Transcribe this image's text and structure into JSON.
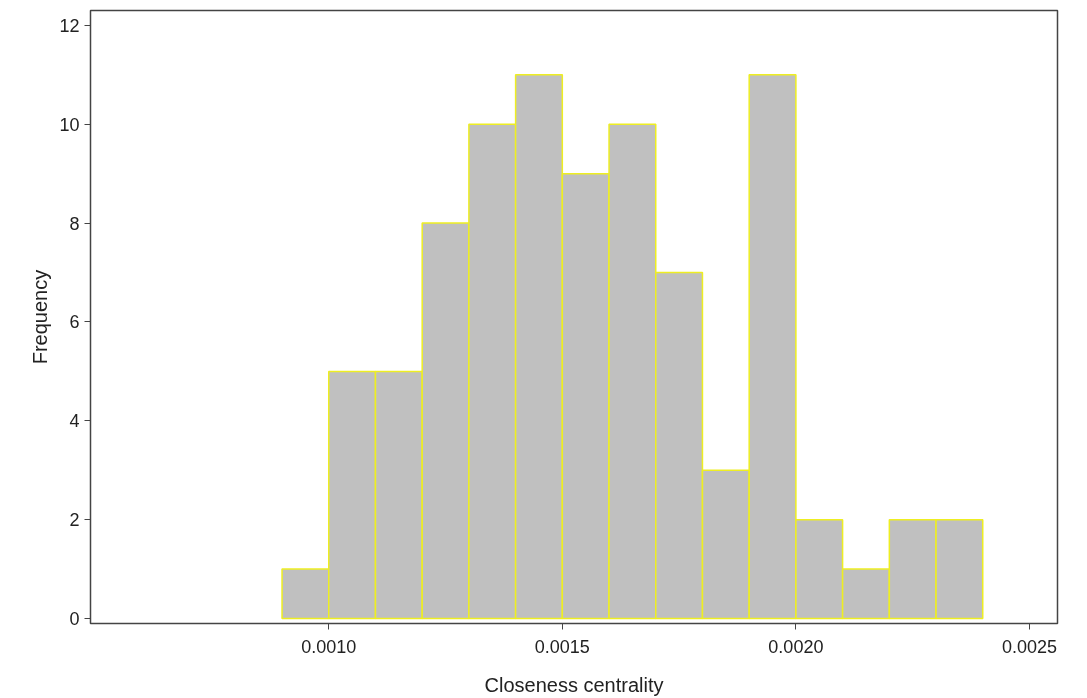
{
  "chart_data": {
    "type": "histogram",
    "xlabel": "Closeness centrality",
    "ylabel": "Frequency",
    "bins": [
      0.0009,
      0.001,
      0.0011,
      0.0012,
      0.0013,
      0.0014,
      0.0015,
      0.0016,
      0.0017,
      0.0018,
      0.0019,
      0.002,
      0.0021,
      0.0022,
      0.0023,
      0.0024
    ],
    "values": [
      1,
      5,
      5,
      8,
      10,
      11,
      9,
      10,
      7,
      3,
      11,
      2,
      1,
      2,
      2
    ],
    "color": "#c0c0c0",
    "xlim": [
      0.00049,
      0.00256
    ],
    "ylim": [
      -0.1,
      12.3
    ],
    "xticks": [
      {
        "value": 0.001,
        "label": "0.0010"
      },
      {
        "value": 0.0015,
        "label": "0.0015"
      },
      {
        "value": 0.002,
        "label": "0.0020"
      },
      {
        "value": 0.0025,
        "label": "0.0025"
      }
    ],
    "yticks": [
      0,
      2,
      4,
      6,
      8,
      10,
      12
    ],
    "grid": false
  }
}
